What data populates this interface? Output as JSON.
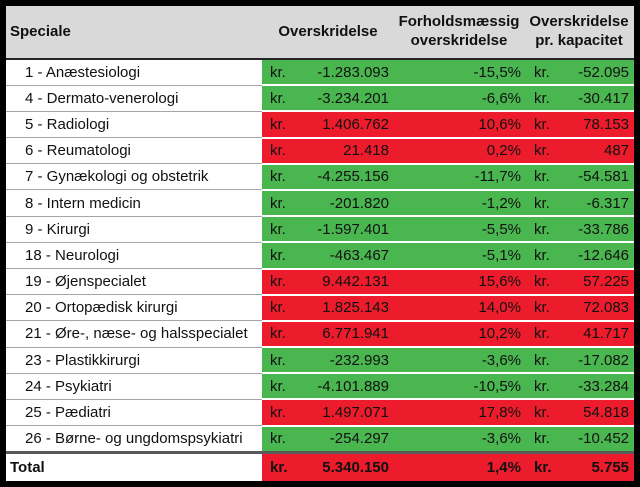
{
  "chart_data": {
    "type": "table",
    "columns": [
      "Speciale",
      "Overskridelse",
      "Forholdsmæssig overskridelse",
      "Overskridelse pr. kapacitet"
    ],
    "currency_label": "kr.",
    "rows": [
      {
        "speciale": "1 - Anæstesiologi",
        "overskridelse": "-1.283.093",
        "forholdsmaessig_pct": "-15,5%",
        "pr_kapacitet": "-52.095",
        "color": "green"
      },
      {
        "speciale": "4 - Dermato-venerologi",
        "overskridelse": "-3.234.201",
        "forholdsmaessig_pct": "-6,6%",
        "pr_kapacitet": "-30.417",
        "color": "green"
      },
      {
        "speciale": "5 - Radiologi",
        "overskridelse": "1.406.762",
        "forholdsmaessig_pct": "10,6%",
        "pr_kapacitet": "78.153",
        "color": "red"
      },
      {
        "speciale": "6 - Reumatologi",
        "overskridelse": "21.418",
        "forholdsmaessig_pct": "0,2%",
        "pr_kapacitet": "487",
        "color": "red"
      },
      {
        "speciale": "7 - Gynækologi og obstetrik",
        "overskridelse": "-4.255.156",
        "forholdsmaessig_pct": "-11,7%",
        "pr_kapacitet": "-54.581",
        "color": "green"
      },
      {
        "speciale": "8 - Intern medicin",
        "overskridelse": "-201.820",
        "forholdsmaessig_pct": "-1,2%",
        "pr_kapacitet": "-6.317",
        "color": "green"
      },
      {
        "speciale": "9 - Kirurgi",
        "overskridelse": "-1.597.401",
        "forholdsmaessig_pct": "-5,5%",
        "pr_kapacitet": "-33.786",
        "color": "green"
      },
      {
        "speciale": "18 - Neurologi",
        "overskridelse": "-463.467",
        "forholdsmaessig_pct": "-5,1%",
        "pr_kapacitet": "-12.646",
        "color": "green"
      },
      {
        "speciale": "19 - Øjenspecialet",
        "overskridelse": "9.442.131",
        "forholdsmaessig_pct": "15,6%",
        "pr_kapacitet": "57.225",
        "color": "red"
      },
      {
        "speciale": "20 - Ortopædisk kirurgi",
        "overskridelse": "1.825.143",
        "forholdsmaessig_pct": "14,0%",
        "pr_kapacitet": "72.083",
        "color": "red"
      },
      {
        "speciale": "21 - Øre-, næse- og halsspecialet",
        "overskridelse": "6.771.941",
        "forholdsmaessig_pct": "10,2%",
        "pr_kapacitet": "41.717",
        "color": "red"
      },
      {
        "speciale": "23 - Plastikkirurgi",
        "overskridelse": "-232.993",
        "forholdsmaessig_pct": "-3,6%",
        "pr_kapacitet": "-17.082",
        "color": "green"
      },
      {
        "speciale": "24 - Psykiatri",
        "overskridelse": "-4.101.889",
        "forholdsmaessig_pct": "-10,5%",
        "pr_kapacitet": "-33.284",
        "color": "green"
      },
      {
        "speciale": "25 - Pædiatri",
        "overskridelse": "1.497.071",
        "forholdsmaessig_pct": "17,8%",
        "pr_kapacitet": "54.818",
        "color": "red"
      },
      {
        "speciale": "26 - Børne- og ungdomspsykiatri",
        "overskridelse": "-254.297",
        "forholdsmaessig_pct": "-3,6%",
        "pr_kapacitet": "-10.452",
        "color": "green"
      }
    ],
    "total": {
      "label": "Total",
      "overskridelse": "5.340.150",
      "forholdsmaessig_pct": "1,4%",
      "pr_kapacitet": "5.755",
      "color": "red"
    }
  },
  "colors": {
    "green": "#4ab650",
    "red": "#ec1c2c",
    "header_bg": "#d9d9d9",
    "border": "#000000",
    "header_text": "#111111",
    "cell_text": "#111111"
  }
}
